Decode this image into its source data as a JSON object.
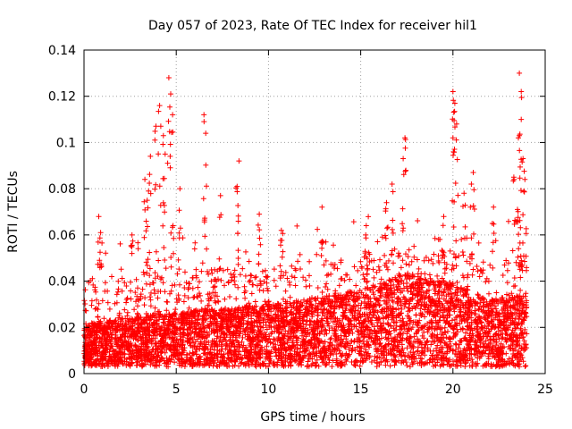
{
  "chart_data": {
    "type": "scatter",
    "title": "Day 057 of 2023, Rate Of TEC Index for receiver hil1",
    "xlabel": "GPS time / hours",
    "ylabel": "ROTI / TECUs",
    "xlim": [
      0,
      25
    ],
    "ylim": [
      0,
      0.14
    ],
    "x_ticks": [
      0,
      5,
      10,
      15,
      20,
      25
    ],
    "x_tick_labels": [
      "0",
      "5",
      "10",
      "15",
      "20",
      "25"
    ],
    "y_ticks": [
      0,
      0.02,
      0.04,
      0.06,
      0.08,
      0.1,
      0.12,
      0.14
    ],
    "y_tick_labels": [
      "0",
      "0.02",
      "0.04",
      "0.06",
      "0.08",
      "0.1",
      "0.12",
      "0.14"
    ],
    "grid": true,
    "marker": "+",
    "color": "#ff0000",
    "x_range_hours": [
      0,
      24
    ],
    "baseline_profile": [
      [
        0,
        0.013
      ],
      [
        3,
        0.015
      ],
      [
        6,
        0.017
      ],
      [
        9,
        0.018
      ],
      [
        12,
        0.02
      ],
      [
        15,
        0.023
      ],
      [
        17.5,
        0.028
      ],
      [
        20,
        0.025
      ],
      [
        22,
        0.02
      ],
      [
        24,
        0.022
      ]
    ],
    "spikes": [
      {
        "x": 0.8,
        "y": 0.068
      },
      {
        "x": 0.9,
        "y": 0.061
      },
      {
        "x": 2.6,
        "y": 0.06
      },
      {
        "x": 3.3,
        "y": 0.084
      },
      {
        "x": 3.5,
        "y": 0.079
      },
      {
        "x": 3.6,
        "y": 0.094
      },
      {
        "x": 3.9,
        "y": 0.107
      },
      {
        "x": 4.1,
        "y": 0.116
      },
      {
        "x": 4.3,
        "y": 0.103
      },
      {
        "x": 4.4,
        "y": 0.095
      },
      {
        "x": 4.6,
        "y": 0.128
      },
      {
        "x": 4.7,
        "y": 0.121
      },
      {
        "x": 4.8,
        "y": 0.112
      },
      {
        "x": 5.2,
        "y": 0.08
      },
      {
        "x": 6.5,
        "y": 0.112
      },
      {
        "x": 6.6,
        "y": 0.104
      },
      {
        "x": 7.4,
        "y": 0.077
      },
      {
        "x": 8.4,
        "y": 0.092
      },
      {
        "x": 8.3,
        "y": 0.081
      },
      {
        "x": 9.5,
        "y": 0.069
      },
      {
        "x": 10.7,
        "y": 0.062
      },
      {
        "x": 12.9,
        "y": 0.072
      },
      {
        "x": 15.3,
        "y": 0.064
      },
      {
        "x": 17.4,
        "y": 0.102
      },
      {
        "x": 17.3,
        "y": 0.093
      },
      {
        "x": 16.4,
        "y": 0.074
      },
      {
        "x": 16.7,
        "y": 0.082
      },
      {
        "x": 19.5,
        "y": 0.068
      },
      {
        "x": 20.0,
        "y": 0.122
      },
      {
        "x": 20.1,
        "y": 0.117
      },
      {
        "x": 20.2,
        "y": 0.108
      },
      {
        "x": 20.0,
        "y": 0.102
      },
      {
        "x": 20.6,
        "y": 0.078
      },
      {
        "x": 21.1,
        "y": 0.087
      },
      {
        "x": 21.0,
        "y": 0.082
      },
      {
        "x": 22.2,
        "y": 0.072
      },
      {
        "x": 23.3,
        "y": 0.085
      },
      {
        "x": 23.6,
        "y": 0.13
      },
      {
        "x": 23.7,
        "y": 0.122
      },
      {
        "x": 23.7,
        "y": 0.11
      },
      {
        "x": 23.6,
        "y": 0.103
      },
      {
        "x": 23.8,
        "y": 0.093
      },
      {
        "x": 23.9,
        "y": 0.084
      },
      {
        "x": 23.5,
        "y": 0.071
      }
    ]
  }
}
